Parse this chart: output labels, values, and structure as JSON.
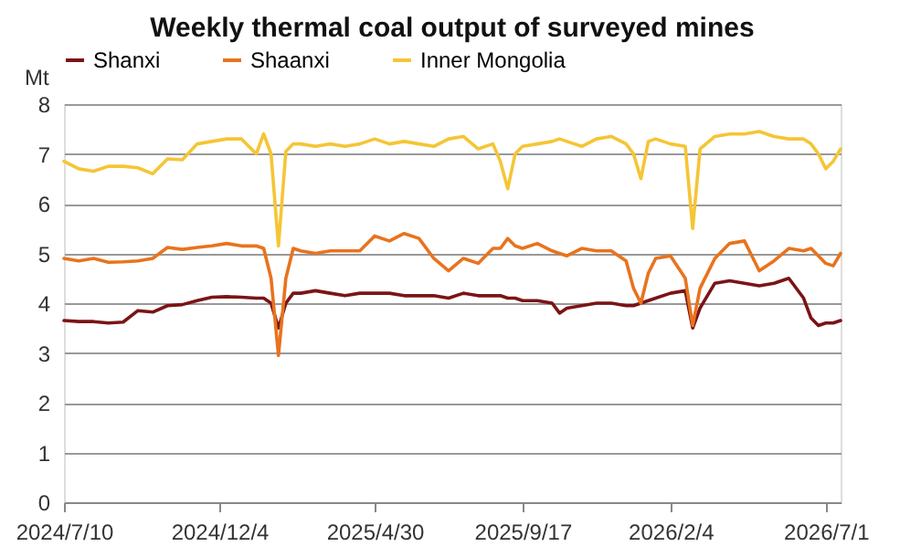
{
  "chart_data": {
    "type": "line",
    "title": "Weekly thermal coal output of surveyed mines",
    "ylabel": "Mt",
    "x": [
      "2024-07-10",
      "2024-07-24",
      "2024-08-07",
      "2024-08-21",
      "2024-09-04",
      "2024-09-18",
      "2024-10-02",
      "2024-10-16",
      "2024-10-30",
      "2024-11-13",
      "2024-11-27",
      "2024-12-11",
      "2024-12-25",
      "2025-01-08",
      "2025-01-15",
      "2025-01-22",
      "2025-01-29",
      "2025-02-05",
      "2025-02-12",
      "2025-02-19",
      "2025-03-05",
      "2025-03-19",
      "2025-04-02",
      "2025-04-16",
      "2025-04-30",
      "2025-05-14",
      "2025-05-28",
      "2025-06-11",
      "2025-06-25",
      "2025-07-09",
      "2025-07-23",
      "2025-08-06",
      "2025-08-20",
      "2025-08-27",
      "2025-09-03",
      "2025-09-10",
      "2025-09-17",
      "2025-10-01",
      "2025-10-15",
      "2025-10-22",
      "2025-10-29",
      "2025-11-12",
      "2025-11-26",
      "2025-12-10",
      "2025-12-24",
      "2025-12-31",
      "2026-01-07",
      "2026-01-14",
      "2026-01-21",
      "2026-02-04",
      "2026-02-18",
      "2026-02-25",
      "2026-03-04",
      "2026-03-18",
      "2026-04-01",
      "2026-04-15",
      "2026-04-29",
      "2026-05-13",
      "2026-05-27",
      "2026-06-10",
      "2026-06-17",
      "2026-06-24",
      "2026-07-01",
      "2026-07-08",
      "2026-07-15"
    ],
    "series": [
      {
        "name": "Shanxi",
        "color": "#7b1416",
        "values": [
          3.65,
          3.63,
          3.63,
          3.6,
          3.62,
          3.85,
          3.82,
          3.95,
          3.97,
          4.05,
          4.12,
          4.13,
          4.12,
          4.1,
          4.1,
          4.0,
          3.5,
          4.0,
          4.2,
          4.2,
          4.25,
          4.2,
          4.15,
          4.2,
          4.2,
          4.2,
          4.15,
          4.15,
          4.15,
          4.1,
          4.2,
          4.15,
          4.15,
          4.15,
          4.1,
          4.1,
          4.05,
          4.05,
          4.0,
          3.8,
          3.9,
          3.95,
          4.0,
          4.0,
          3.95,
          3.95,
          4.0,
          4.05,
          4.1,
          4.2,
          4.25,
          3.5,
          3.9,
          4.4,
          4.45,
          4.4,
          4.35,
          4.4,
          4.5,
          4.1,
          3.7,
          3.55,
          3.6,
          3.6,
          3.65
        ]
      },
      {
        "name": "Shaanxi",
        "color": "#e8731e",
        "values": [
          4.9,
          4.85,
          4.9,
          4.82,
          4.83,
          4.85,
          4.9,
          5.12,
          5.08,
          5.12,
          5.15,
          5.2,
          5.15,
          5.15,
          5.1,
          4.5,
          2.95,
          4.5,
          5.1,
          5.05,
          5.0,
          5.05,
          5.05,
          5.05,
          5.35,
          5.25,
          5.4,
          5.3,
          4.9,
          4.65,
          4.9,
          4.8,
          5.1,
          5.1,
          5.3,
          5.15,
          5.1,
          5.2,
          5.05,
          5.0,
          4.95,
          5.1,
          5.05,
          5.05,
          4.85,
          4.3,
          4.0,
          4.6,
          4.9,
          4.95,
          4.5,
          3.55,
          4.3,
          4.9,
          5.2,
          5.25,
          4.65,
          4.85,
          5.1,
          5.05,
          5.1,
          4.95,
          4.8,
          4.75,
          5.0
        ]
      },
      {
        "name": "Inner Mongolia",
        "color": "#f5c535",
        "values": [
          6.85,
          6.7,
          6.65,
          6.75,
          6.75,
          6.72,
          6.6,
          6.9,
          6.88,
          7.2,
          7.25,
          7.3,
          7.3,
          7.0,
          7.4,
          7.0,
          5.15,
          7.05,
          7.2,
          7.2,
          7.15,
          7.2,
          7.15,
          7.2,
          7.3,
          7.2,
          7.25,
          7.2,
          7.15,
          7.3,
          7.35,
          7.1,
          7.2,
          6.85,
          6.3,
          7.0,
          7.15,
          7.2,
          7.25,
          7.3,
          7.25,
          7.15,
          7.3,
          7.35,
          7.2,
          7.0,
          6.5,
          7.25,
          7.3,
          7.2,
          7.15,
          5.5,
          7.1,
          7.35,
          7.4,
          7.4,
          7.45,
          7.35,
          7.3,
          7.3,
          7.2,
          7.0,
          6.7,
          6.85,
          7.1
        ]
      }
    ],
    "xlim": [
      "2024-07-10",
      "2026-07-15"
    ],
    "xticks": [
      {
        "value": "2024-07-10",
        "label": "2024/7/10"
      },
      {
        "value": "2024-12-04",
        "label": "2024/12/4"
      },
      {
        "value": "2025-04-30",
        "label": "2025/4/30"
      },
      {
        "value": "2025-09-17",
        "label": "2025/9/17"
      },
      {
        "value": "2026-02-04",
        "label": "2026/2/4"
      },
      {
        "value": "2026-07-01",
        "label": "2026/7/1"
      }
    ],
    "ylim": [
      0,
      8
    ],
    "yticks": [
      0,
      1,
      2,
      3,
      4,
      5,
      6,
      7,
      8
    ],
    "grid": "y",
    "legend": "top",
    "marker": "none",
    "line_style": "solid"
  }
}
